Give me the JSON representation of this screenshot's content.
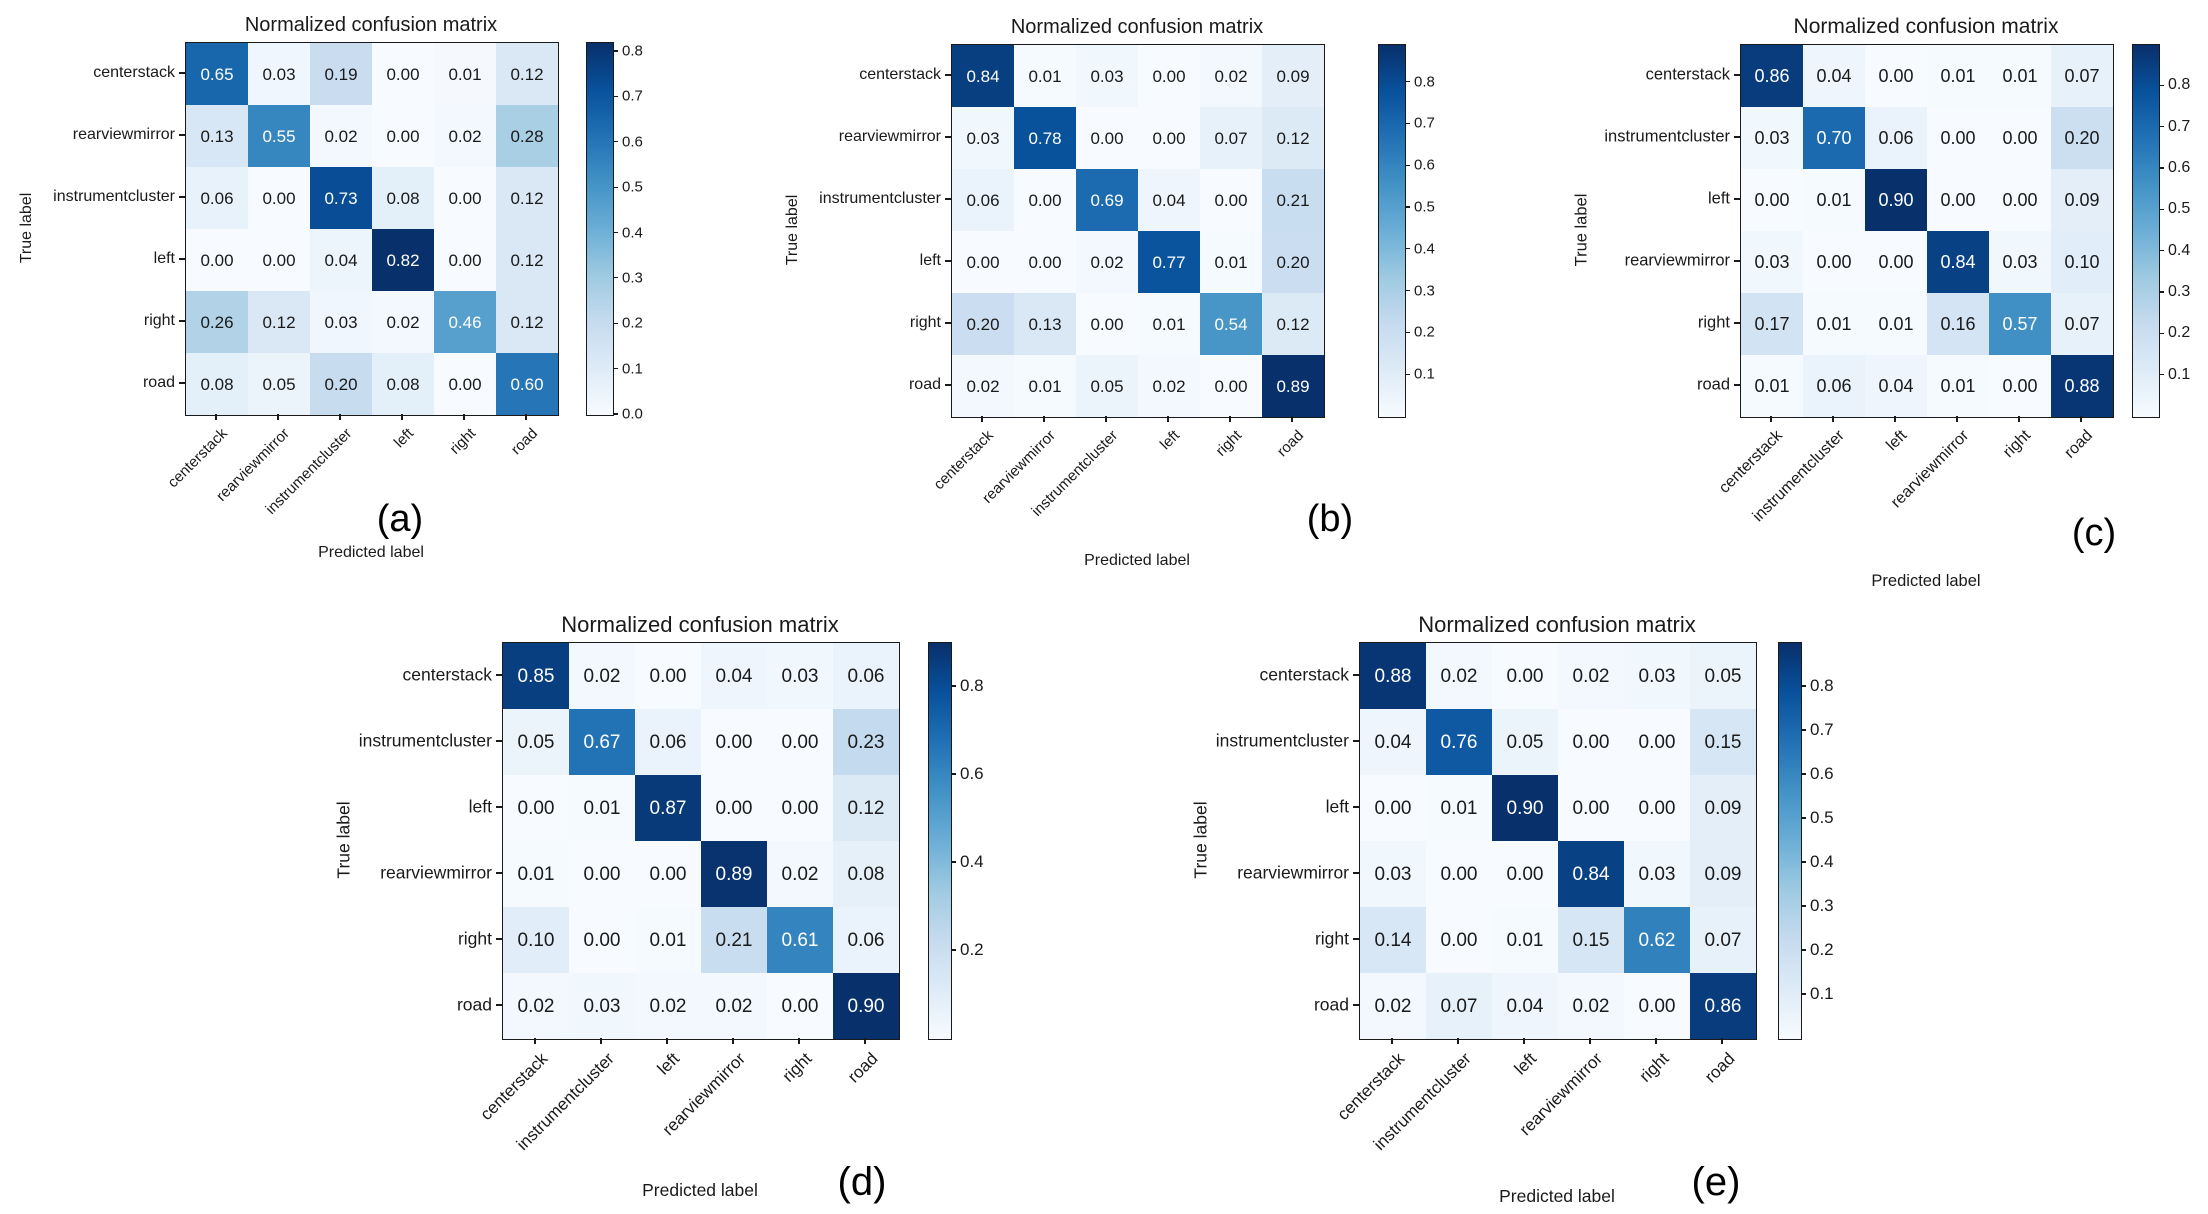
{
  "page": {
    "background": "#ffffff"
  },
  "colors": {
    "blues_colormap": [
      "#f7fbff",
      "#deebf7",
      "#c6dbef",
      "#9ecae1",
      "#6baed6",
      "#4292c6",
      "#2171b5",
      "#08519c",
      "#08306b"
    ],
    "cell_text_dark": "#1a1a1a",
    "cell_text_light": "#ffffff",
    "axis_text": "#1a1a1a"
  },
  "chart_data": [
    {
      "type": "heatmap",
      "caption": "(a)",
      "title": "Normalized confusion matrix",
      "xlabel": "Predicted label",
      "ylabel": "True label",
      "x_tick_labels": [
        "centerstack",
        "rearviewmirror",
        "instrumentcluster",
        "left",
        "right",
        "road"
      ],
      "y_tick_labels": [
        "centerstack",
        "rearviewmirror",
        "instrumentcluster",
        "left",
        "right",
        "road"
      ],
      "matrix": [
        [
          0.65,
          0.03,
          0.19,
          0.0,
          0.01,
          0.12
        ],
        [
          0.13,
          0.55,
          0.02,
          0.0,
          0.02,
          0.28
        ],
        [
          0.06,
          0.0,
          0.73,
          0.08,
          0.0,
          0.12
        ],
        [
          0.0,
          0.0,
          0.04,
          0.82,
          0.0,
          0.12
        ],
        [
          0.26,
          0.12,
          0.03,
          0.02,
          0.46,
          0.12
        ],
        [
          0.08,
          0.05,
          0.2,
          0.08,
          0.0,
          0.6
        ]
      ],
      "vmin": 0.0,
      "vmax": 0.82,
      "colorbar_ticks": [
        0.0,
        0.1,
        0.2,
        0.3,
        0.4,
        0.5,
        0.6,
        0.7,
        0.8
      ],
      "legend_position": "right-colorbar",
      "grid": false
    },
    {
      "type": "heatmap",
      "caption": "(b)",
      "title": "Normalized confusion matrix",
      "xlabel": "Predicted label",
      "ylabel": "True label",
      "x_tick_labels": [
        "centerstack",
        "rearviewmirror",
        "instrumentcluster",
        "left",
        "right",
        "road"
      ],
      "y_tick_labels": [
        "centerstack",
        "rearviewmirror",
        "instrumentcluster",
        "left",
        "right",
        "road"
      ],
      "matrix": [
        [
          0.84,
          0.01,
          0.03,
          0.0,
          0.02,
          0.09
        ],
        [
          0.03,
          0.78,
          0.0,
          0.0,
          0.07,
          0.12
        ],
        [
          0.06,
          0.0,
          0.69,
          0.04,
          0.0,
          0.21
        ],
        [
          0.0,
          0.0,
          0.02,
          0.77,
          0.01,
          0.2
        ],
        [
          0.2,
          0.13,
          0.0,
          0.01,
          0.54,
          0.12
        ],
        [
          0.02,
          0.01,
          0.05,
          0.02,
          0.0,
          0.89
        ]
      ],
      "vmin": 0.0,
      "vmax": 0.89,
      "colorbar_ticks": [
        0.1,
        0.2,
        0.3,
        0.4,
        0.5,
        0.6,
        0.7,
        0.8
      ],
      "legend_position": "right-colorbar",
      "grid": false
    },
    {
      "type": "heatmap",
      "caption": "(c)",
      "title": "Normalized confusion matrix",
      "xlabel": "Predicted label",
      "ylabel": "True label",
      "x_tick_labels": [
        "centerstack",
        "instrumentcluster",
        "left",
        "rearviewmirror",
        "right",
        "road"
      ],
      "y_tick_labels": [
        "centerstack",
        "instrumentcluster",
        "left",
        "rearviewmirror",
        "right",
        "road"
      ],
      "matrix": [
        [
          0.86,
          0.04,
          0.0,
          0.01,
          0.01,
          0.07
        ],
        [
          0.03,
          0.7,
          0.06,
          0.0,
          0.0,
          0.2
        ],
        [
          0.0,
          0.01,
          0.9,
          0.0,
          0.0,
          0.09
        ],
        [
          0.03,
          0.0,
          0.0,
          0.84,
          0.03,
          0.1
        ],
        [
          0.17,
          0.01,
          0.01,
          0.16,
          0.57,
          0.07
        ],
        [
          0.01,
          0.06,
          0.04,
          0.01,
          0.0,
          0.88
        ]
      ],
      "vmin": 0.0,
      "vmax": 0.9,
      "colorbar_ticks": [
        0.1,
        0.2,
        0.3,
        0.4,
        0.5,
        0.6,
        0.7,
        0.8
      ],
      "legend_position": "right-colorbar",
      "grid": false
    },
    {
      "type": "heatmap",
      "caption": "(d)",
      "title": "Normalized confusion matrix",
      "xlabel": "Predicted label",
      "ylabel": "True label",
      "x_tick_labels": [
        "centerstack",
        "instrumentcluster",
        "left",
        "rearviewmirror",
        "right",
        "road"
      ],
      "y_tick_labels": [
        "centerstack",
        "instrumentcluster",
        "left",
        "rearviewmirror",
        "right",
        "road"
      ],
      "matrix": [
        [
          0.85,
          0.02,
          0.0,
          0.04,
          0.03,
          0.06
        ],
        [
          0.05,
          0.67,
          0.06,
          0.0,
          0.0,
          0.23
        ],
        [
          0.0,
          0.01,
          0.87,
          0.0,
          0.0,
          0.12
        ],
        [
          0.01,
          0.0,
          0.0,
          0.89,
          0.02,
          0.08
        ],
        [
          0.1,
          0.0,
          0.01,
          0.21,
          0.61,
          0.06
        ],
        [
          0.02,
          0.03,
          0.02,
          0.02,
          0.0,
          0.9
        ]
      ],
      "vmin": 0.0,
      "vmax": 0.9,
      "colorbar_ticks": [
        0.2,
        0.4,
        0.6,
        0.8
      ],
      "legend_position": "right-colorbar",
      "grid": false
    },
    {
      "type": "heatmap",
      "caption": "(e)",
      "title": "Normalized confusion matrix",
      "xlabel": "Predicted label",
      "ylabel": "True label",
      "x_tick_labels": [
        "centerstack",
        "instrumentcluster",
        "left",
        "rearviewmirror",
        "right",
        "road"
      ],
      "y_tick_labels": [
        "centerstack",
        "instrumentcluster",
        "left",
        "rearviewmirror",
        "right",
        "road"
      ],
      "matrix": [
        [
          0.88,
          0.02,
          0.0,
          0.02,
          0.03,
          0.05
        ],
        [
          0.04,
          0.76,
          0.05,
          0.0,
          0.0,
          0.15
        ],
        [
          0.0,
          0.01,
          0.9,
          0.0,
          0.0,
          0.09
        ],
        [
          0.03,
          0.0,
          0.0,
          0.84,
          0.03,
          0.09
        ],
        [
          0.14,
          0.0,
          0.01,
          0.15,
          0.62,
          0.07
        ],
        [
          0.02,
          0.07,
          0.04,
          0.02,
          0.0,
          0.86
        ]
      ],
      "vmin": 0.0,
      "vmax": 0.9,
      "colorbar_ticks": [
        0.1,
        0.2,
        0.3,
        0.4,
        0.5,
        0.6,
        0.7,
        0.8
      ],
      "legend_position": "right-colorbar",
      "grid": false
    }
  ]
}
